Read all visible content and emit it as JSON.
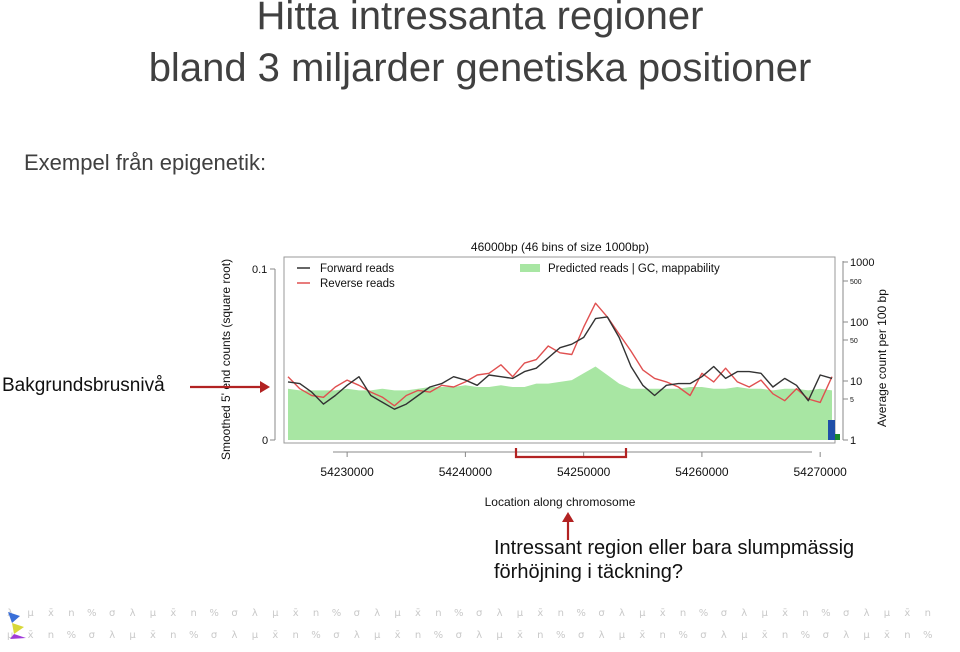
{
  "slide": {
    "title_line1": "Hitta intressanta regioner",
    "title_line2": "bland 3 miljarder genetiska positioner",
    "subtitle": "Exempel från epigenetik:",
    "background_label": "Bakgrundsbrusnivå",
    "question_line1": "Intressant region eller bara slumpmässig",
    "question_line2": "förhöjning i täckning?",
    "footer_pattern": [
      "λ",
      "μ",
      "x̄",
      "n",
      "%",
      "σ"
    ]
  },
  "chart_data": {
    "type": "line",
    "title": "46000bp (46 bins of size 1000bp)",
    "xlabel": "Location along chromosome",
    "ylabel": "Smoothed 5' end counts (square root)",
    "ylabel_right": "Average count per 100 bp",
    "xlim": [
      54225000,
      54271000
    ],
    "ylim": [
      0,
      0.1
    ],
    "x_ticks": [
      "54230000",
      "54240000",
      "54250000",
      "54260000",
      "54270000"
    ],
    "y_ticks_left": [
      "0",
      "0.1"
    ],
    "y_ticks_right": [
      "1000",
      "500",
      "100",
      "50",
      "10",
      "5",
      "1"
    ],
    "legend": {
      "position": "top",
      "entries": [
        "Forward reads",
        "Reverse reads",
        "Predicted reads | GC, mappability"
      ]
    },
    "colors": {
      "forward": "#333333",
      "reverse": "#e05050",
      "predicted": "#a8e6a3",
      "arrow": "#b22222"
    },
    "x": [
      54225000,
      54226000,
      54227000,
      54228000,
      54229000,
      54230000,
      54231000,
      54232000,
      54233000,
      54234000,
      54235000,
      54236000,
      54237000,
      54238000,
      54239000,
      54240000,
      54241000,
      54242000,
      54243000,
      54244000,
      54245000,
      54246000,
      54247000,
      54248000,
      54249000,
      54250000,
      54251000,
      54252000,
      54253000,
      54254000,
      54255000,
      54256000,
      54257000,
      54258000,
      54259000,
      54260000,
      54261000,
      54262000,
      54263000,
      54264000,
      54265000,
      54266000,
      54267000,
      54268000,
      54269000,
      54270000,
      54271000
    ],
    "series": [
      {
        "name": "Forward reads",
        "values": [
          0.034,
          0.033,
          0.028,
          0.021,
          0.026,
          0.032,
          0.037,
          0.026,
          0.022,
          0.018,
          0.021,
          0.026,
          0.031,
          0.033,
          0.037,
          0.035,
          0.032,
          0.038,
          0.037,
          0.036,
          0.04,
          0.042,
          0.048,
          0.054,
          0.056,
          0.06,
          0.071,
          0.072,
          0.06,
          0.043,
          0.032,
          0.026,
          0.032,
          0.033,
          0.033,
          0.037,
          0.043,
          0.036,
          0.04,
          0.04,
          0.039,
          0.031,
          0.036,
          0.032,
          0.023,
          0.038,
          0.036
        ]
      },
      {
        "name": "Reverse reads",
        "values": [
          0.037,
          0.03,
          0.026,
          0.025,
          0.031,
          0.035,
          0.032,
          0.028,
          0.025,
          0.02,
          0.026,
          0.029,
          0.028,
          0.032,
          0.031,
          0.034,
          0.038,
          0.039,
          0.044,
          0.037,
          0.045,
          0.047,
          0.055,
          0.051,
          0.05,
          0.066,
          0.08,
          0.072,
          0.062,
          0.052,
          0.041,
          0.036,
          0.034,
          0.031,
          0.026,
          0.039,
          0.034,
          0.042,
          0.034,
          0.031,
          0.035,
          0.027,
          0.023,
          0.03,
          0.024,
          0.022,
          0.037
        ]
      },
      {
        "name": "Predicted reads | GC, mappability",
        "values": [
          0.03,
          0.029,
          0.029,
          0.029,
          0.029,
          0.03,
          0.029,
          0.029,
          0.03,
          0.029,
          0.029,
          0.03,
          0.031,
          0.031,
          0.031,
          0.032,
          0.031,
          0.031,
          0.032,
          0.031,
          0.031,
          0.033,
          0.033,
          0.034,
          0.035,
          0.039,
          0.043,
          0.038,
          0.033,
          0.03,
          0.03,
          0.03,
          0.03,
          0.03,
          0.031,
          0.031,
          0.03,
          0.03,
          0.031,
          0.03,
          0.03,
          0.029,
          0.03,
          0.03,
          0.029,
          0.03,
          0.029
        ]
      }
    ]
  }
}
